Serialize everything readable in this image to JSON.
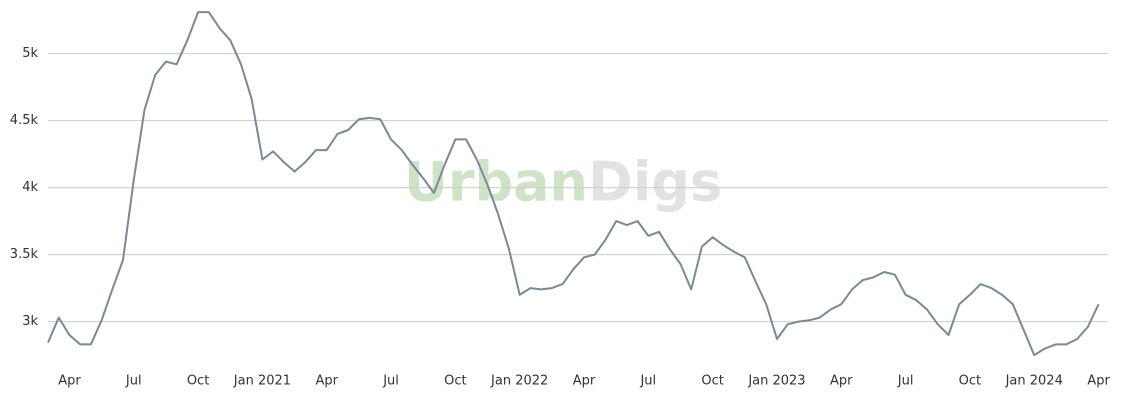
{
  "chart_data": {
    "type": "line",
    "watermark": {
      "first": "Urban",
      "second": "Digs"
    },
    "categories": [
      null,
      null,
      "Apr",
      null,
      null,
      null,
      null,
      null,
      "Jul",
      null,
      null,
      null,
      null,
      null,
      "Oct",
      null,
      null,
      null,
      null,
      null,
      "Jan 2021",
      null,
      null,
      null,
      null,
      null,
      "Apr",
      null,
      null,
      null,
      null,
      null,
      "Jul",
      null,
      null,
      null,
      null,
      null,
      "Oct",
      null,
      null,
      null,
      null,
      null,
      "Jan 2022",
      null,
      null,
      null,
      null,
      null,
      "Apr",
      null,
      null,
      null,
      null,
      null,
      "Jul",
      null,
      null,
      null,
      null,
      null,
      "Oct",
      null,
      null,
      null,
      null,
      null,
      "Jan 2023",
      null,
      null,
      null,
      null,
      null,
      "Apr",
      null,
      null,
      null,
      null,
      null,
      "Jul",
      null,
      null,
      null,
      null,
      null,
      "Oct",
      null,
      null,
      null,
      null,
      null,
      "Jan 2024",
      null,
      null,
      null,
      null,
      null,
      "Apr"
    ],
    "values": [
      2843,
      3030,
      2900,
      2830,
      2830,
      3010,
      3240,
      3460,
      4060,
      4580,
      4840,
      4940,
      4920,
      5100,
      5310,
      5310,
      5190,
      5100,
      4920,
      4660,
      4210,
      4270,
      4190,
      4120,
      4190,
      4280,
      4280,
      4400,
      4430,
      4510,
      4520,
      4510,
      4360,
      4280,
      4170,
      4070,
      3960,
      4170,
      4360,
      4360,
      4210,
      4020,
      3800,
      3540,
      3200,
      3250,
      3240,
      3250,
      3280,
      3390,
      3480,
      3500,
      3610,
      3750,
      3720,
      3750,
      3640,
      3670,
      3540,
      3430,
      3240,
      3560,
      3630,
      3570,
      3520,
      3480,
      3300,
      3130,
      2870,
      2980,
      3000,
      3010,
      3030,
      3090,
      3130,
      3240,
      3310,
      3330,
      3370,
      3350,
      3200,
      3160,
      3090,
      2980,
      2900,
      3130,
      3200,
      3280,
      3250,
      3200,
      3130,
      2940,
      2750,
      2800,
      2830,
      2830,
      2870,
      2960,
      3130
    ],
    "color": "#778a99",
    "ylim": [
      2650,
      5400
    ],
    "yticks": [
      {
        "value": 3000,
        "label": "3k"
      },
      {
        "value": 3500,
        "label": "3.5k"
      },
      {
        "value": 4000,
        "label": "4k"
      },
      {
        "value": 4500,
        "label": "4.5k"
      },
      {
        "value": 5000,
        "label": "5k"
      }
    ],
    "grid": true
  }
}
